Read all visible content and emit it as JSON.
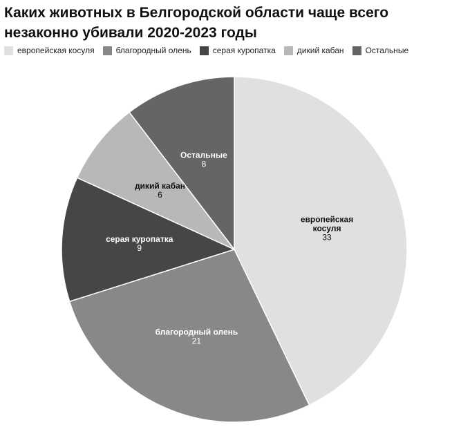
{
  "chart_data": {
    "type": "pie",
    "title": "Каких животных в Белгородской области чаще всего незаконно убивали 2020-2023 годы",
    "legend_position": "top-left",
    "slices": [
      {
        "name": "европейская косуля",
        "label_lines": [
          "европейская",
          "косуля"
        ],
        "value": 33,
        "color": "#e0e0e0",
        "text_color": "#111111"
      },
      {
        "name": "благородный олень",
        "label_lines": [
          "благородный олень"
        ],
        "value": 21,
        "color": "#888888",
        "text_color": "#ffffff"
      },
      {
        "name": "серая куропатка",
        "label_lines": [
          "серая куропатка"
        ],
        "value": 9,
        "color": "#464646",
        "text_color": "#ffffff"
      },
      {
        "name": "дикий кабан",
        "label_lines": [
          "дикий кабан"
        ],
        "value": 6,
        "color": "#b8b8b8",
        "text_color": "#111111"
      },
      {
        "name": "Остальные",
        "label_lines": [
          "Остальные"
        ],
        "value": 8,
        "color": "#656565",
        "text_color": "#ffffff"
      }
    ]
  }
}
